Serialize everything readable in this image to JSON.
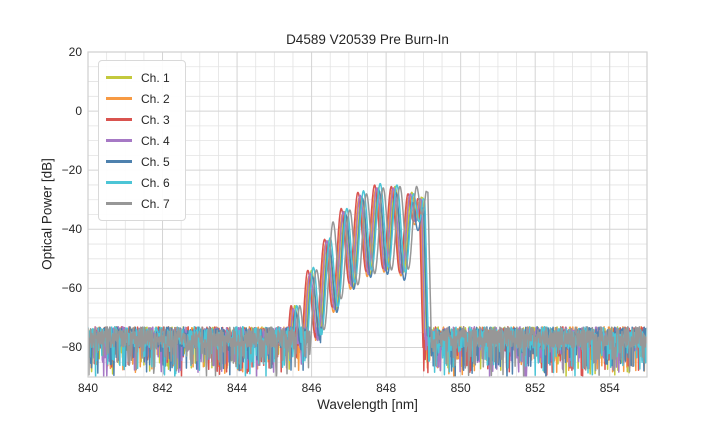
{
  "chart_data": {
    "type": "line",
    "title": "D4589 V20539 Pre Burn-In",
    "xlabel": "Wavelength [nm]",
    "ylabel": "Optical Power [dB]",
    "xlim": [
      840,
      855
    ],
    "ylim": [
      -90,
      20
    ],
    "xticks": [
      840,
      842,
      844,
      846,
      848,
      850,
      852,
      854
    ],
    "yticks": [
      20,
      0,
      -20,
      -40,
      -60,
      -80
    ],
    "grid": {
      "show_major": true,
      "show_minor": true,
      "minor_x_step_nm": 0.5,
      "minor_y_step_db": 5,
      "major_color": "#d4d4d4",
      "minor_color": "#e3e3e3",
      "frame_color": "#cfcfcf"
    },
    "legend_position": "upper-left",
    "background_color": "#ffffff",
    "noise_floor_db": -77,
    "noise_band_top_db": -73,
    "mode_spacing_nm": 0.45,
    "mode_dip_depth_db": 28,
    "signal_range_nm": [
      845.2,
      849.2
    ],
    "peak_power_db": -24,
    "series": [
      {
        "name": "Ch. 1",
        "color": "#c3c93d",
        "first_mode_nm": 845.54,
        "mode_peaks_db": [
          -66,
          -54,
          -44,
          -34,
          -29,
          -26,
          -25.5,
          -27.5
        ],
        "onset_db": -86,
        "cliff_db": -93,
        "noise_seed": 101
      },
      {
        "name": "Ch. 2",
        "color": "#f79a43",
        "first_mode_nm": 845.47,
        "mode_peaks_db": [
          -67,
          -56,
          -45,
          -35,
          -29.5,
          -26.5,
          -26.5,
          -29
        ],
        "onset_db": -86,
        "cliff_db": -93,
        "noise_seed": 202
      },
      {
        "name": "Ch. 3",
        "color": "#d9534f",
        "first_mode_nm": 845.44,
        "mode_peaks_db": [
          -66,
          -54,
          -43.5,
          -33,
          -27.5,
          -25,
          -25.5,
          -28
        ],
        "onset_db": -86,
        "cliff_db": -93,
        "noise_seed": 303
      },
      {
        "name": "Ch. 4",
        "color": "#a679c5",
        "first_mode_nm": 845.5,
        "mode_peaks_db": [
          -67,
          -55,
          -44,
          -34,
          -28.5,
          -26,
          -26,
          -28
        ],
        "onset_db": -86,
        "cliff_db": -93,
        "noise_seed": 404
      },
      {
        "name": "Ch. 5",
        "color": "#4e81ae",
        "first_mode_nm": 845.56,
        "mode_peaks_db": [
          -68,
          -56,
          -45,
          -35,
          -29.5,
          -27,
          -27.5,
          -31
        ],
        "onset_db": -86,
        "cliff_db": -93,
        "noise_seed": 505
      },
      {
        "name": "Ch. 6",
        "color": "#4cc5d6",
        "first_mode_nm": 845.59,
        "mode_peaks_db": [
          -66,
          -53,
          -43,
          -33,
          -27,
          -24.5,
          -25,
          -28
        ],
        "onset_db": -86,
        "cliff_db": -93,
        "noise_seed": 606
      },
      {
        "name": "Ch. 7",
        "color": "#979797",
        "first_mode_nm": 845.67,
        "mode_peaks_db": [
          -66,
          -54,
          -37.5,
          -33.5,
          -28,
          -26,
          -25.5,
          -25.5
        ],
        "onset_db": -86,
        "cliff_db": -93,
        "noise_seed": 707
      }
    ]
  }
}
